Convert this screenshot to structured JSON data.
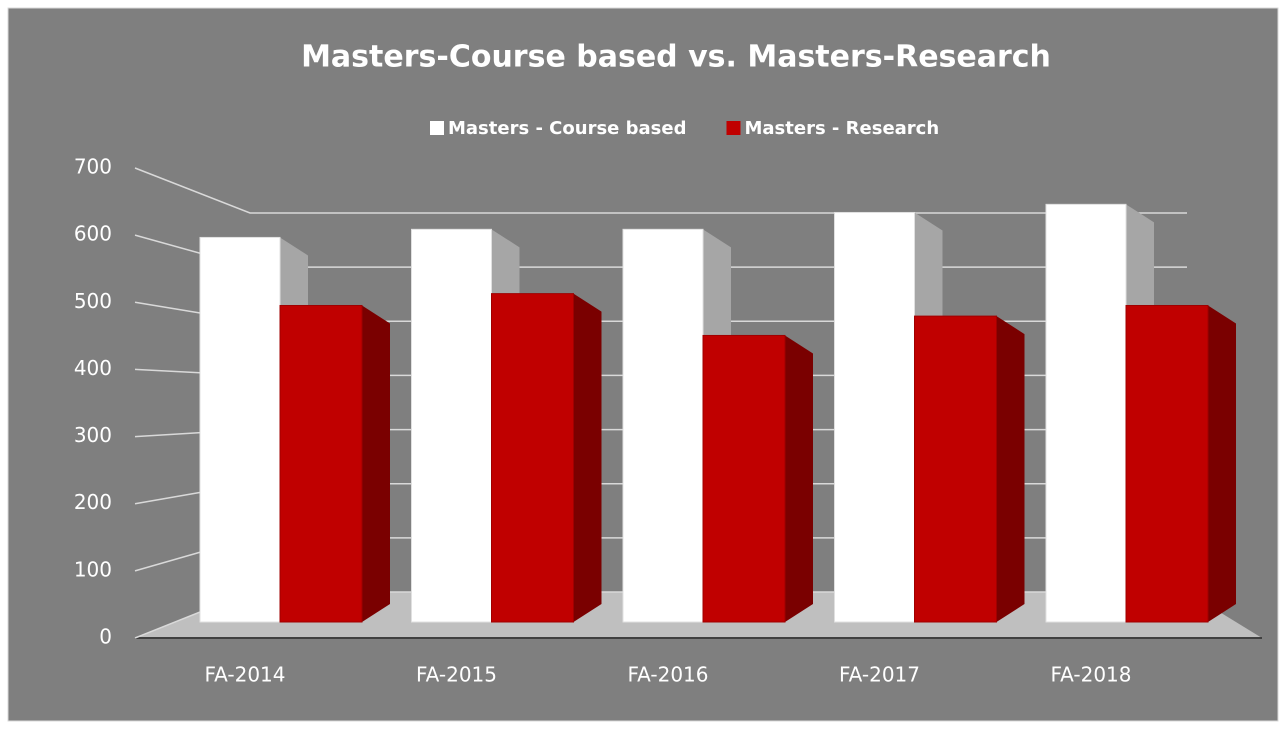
{
  "chart_data": {
    "type": "bar",
    "title": "Masters-Course based vs. Masters-Research",
    "categories": [
      "FA-2014",
      "FA-2015",
      "FA-2016",
      "FA-2017",
      "FA-2018"
    ],
    "series": [
      {
        "name": "Masters - Course based",
        "color": "#ffffff",
        "values": [
          616,
          629,
          629,
          656,
          669
        ]
      },
      {
        "name": "Masters - Research",
        "color": "#c00000",
        "values": [
          507,
          526,
          459,
          490,
          507
        ]
      }
    ],
    "ylim": [
      0,
      700
    ],
    "yticks": [
      0,
      100,
      200,
      300,
      400,
      500,
      600,
      700
    ],
    "grid": true,
    "legend": "top"
  }
}
